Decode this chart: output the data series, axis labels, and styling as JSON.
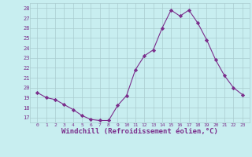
{
  "x": [
    0,
    1,
    2,
    3,
    4,
    5,
    6,
    7,
    8,
    9,
    10,
    11,
    12,
    13,
    14,
    15,
    16,
    17,
    18,
    19,
    20,
    21,
    22,
    23
  ],
  "y": [
    19.5,
    19.0,
    18.8,
    18.3,
    17.8,
    17.2,
    16.8,
    16.7,
    16.7,
    18.2,
    19.2,
    21.8,
    23.2,
    23.8,
    26.0,
    27.8,
    27.2,
    27.8,
    26.5,
    24.8,
    22.8,
    21.2,
    20.0,
    19.3
  ],
  "line_color": "#7b2d8b",
  "marker": "D",
  "marker_size": 2.2,
  "bg_color": "#c8eef0",
  "grid_color": "#aaccd0",
  "xlabel": "Windchill (Refroidissement éolien,°C)",
  "xlabel_fontsize": 6.5,
  "tick_color": "#7b2d8b",
  "ylim": [
    16.5,
    28.5
  ],
  "yticks": [
    17,
    18,
    19,
    20,
    21,
    22,
    23,
    24,
    25,
    26,
    27,
    28
  ],
  "xticks": [
    0,
    1,
    2,
    3,
    4,
    5,
    6,
    7,
    8,
    9,
    10,
    11,
    12,
    13,
    14,
    15,
    16,
    17,
    18,
    19,
    20,
    21,
    22,
    23
  ],
  "xtick_labels": [
    "0",
    "1",
    "2",
    "3",
    "4",
    "5",
    "6",
    "7",
    "8",
    "9",
    "10",
    "11",
    "12",
    "13",
    "14",
    "15",
    "16",
    "17",
    "18",
    "19",
    "20",
    "21",
    "22",
    "23"
  ],
  "ytick_labels": [
    "17",
    "18",
    "19",
    "20",
    "21",
    "22",
    "23",
    "24",
    "25",
    "26",
    "27",
    "28"
  ]
}
